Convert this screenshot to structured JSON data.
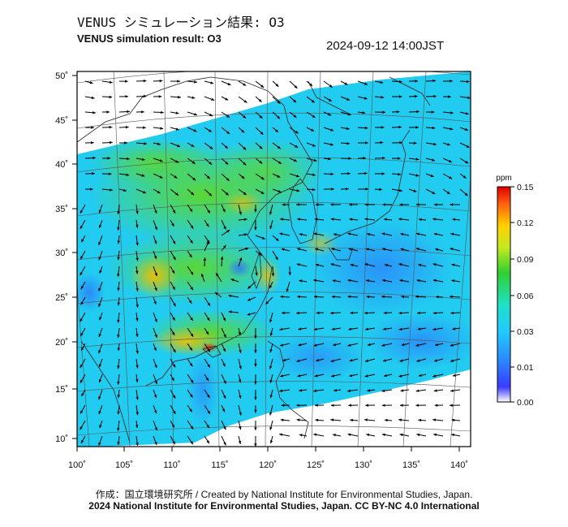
{
  "header": {
    "title_ja": "VENUS シミュレーション結果: O3",
    "title_en": "VENUS simulation result: O3",
    "timestamp": "2024-09-12 14:00JST"
  },
  "map": {
    "lon_ticks": [
      "100˚",
      "105˚",
      "110˚",
      "115˚",
      "120˚",
      "125˚",
      "130˚",
      "135˚",
      "140˚"
    ],
    "lat_ticks": [
      "50˚",
      "45˚",
      "40˚",
      "35˚",
      "30˚",
      "25˚",
      "20˚",
      "15˚",
      "10˚"
    ]
  },
  "colorbar": {
    "unit": "ppm",
    "ticks": [
      "0.15",
      "0.12",
      "0.09",
      "0.06",
      "0.03",
      "0.01",
      "0.00"
    ]
  },
  "footer": {
    "credit": "作成：国立環境研究所 / Created by National Institute for Environmental Studies, Japan.",
    "copyright": "2024 National Institute for Environmental Studies, Japan. CC BY-NC 4.0 International"
  }
}
